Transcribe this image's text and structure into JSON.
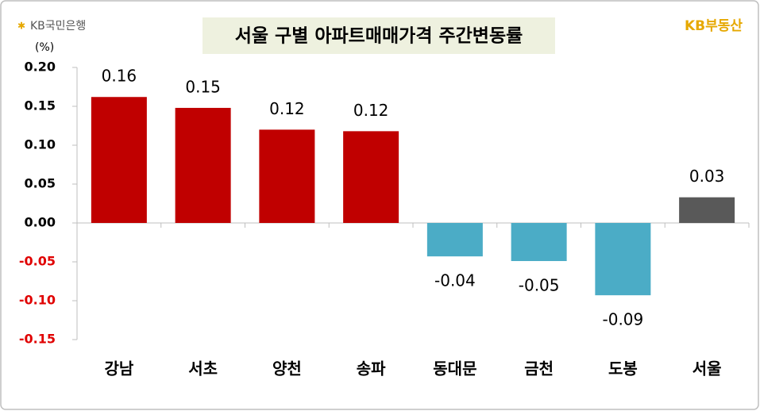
{
  "brand_left": "KB국민은행",
  "brand_right": "KB부동산",
  "chart_data": {
    "type": "bar",
    "title": "서울 구별 아파트매매가격 주간변동률",
    "unit": "(%)",
    "categories": [
      "강남",
      "서초",
      "양천",
      "송파",
      "동대문",
      "금천",
      "도봉",
      "서울"
    ],
    "values": [
      0.162,
      0.148,
      0.12,
      0.118,
      -0.043,
      -0.049,
      -0.093,
      0.033
    ],
    "value_labels": [
      "0.16",
      "0.15",
      "0.12",
      "0.12",
      "-0.04",
      "-0.05",
      "-0.09",
      "0.03"
    ],
    "colors": [
      "#c00000",
      "#c00000",
      "#c00000",
      "#c00000",
      "#4bacc6",
      "#4bacc6",
      "#4bacc6",
      "#595959"
    ],
    "ylim": [
      -0.15,
      0.2
    ],
    "yticks": [
      {
        "value": 0.2,
        "label": "0.20"
      },
      0.15,
      {
        "value": 0.1,
        "label": "0.10"
      },
      0.05,
      {
        "value": 0,
        "label": "0.00"
      },
      -0.05,
      {
        "value": -0.1,
        "label": "-0.10"
      },
      -0.15
    ],
    "negative_tick_color": "#e00000"
  }
}
